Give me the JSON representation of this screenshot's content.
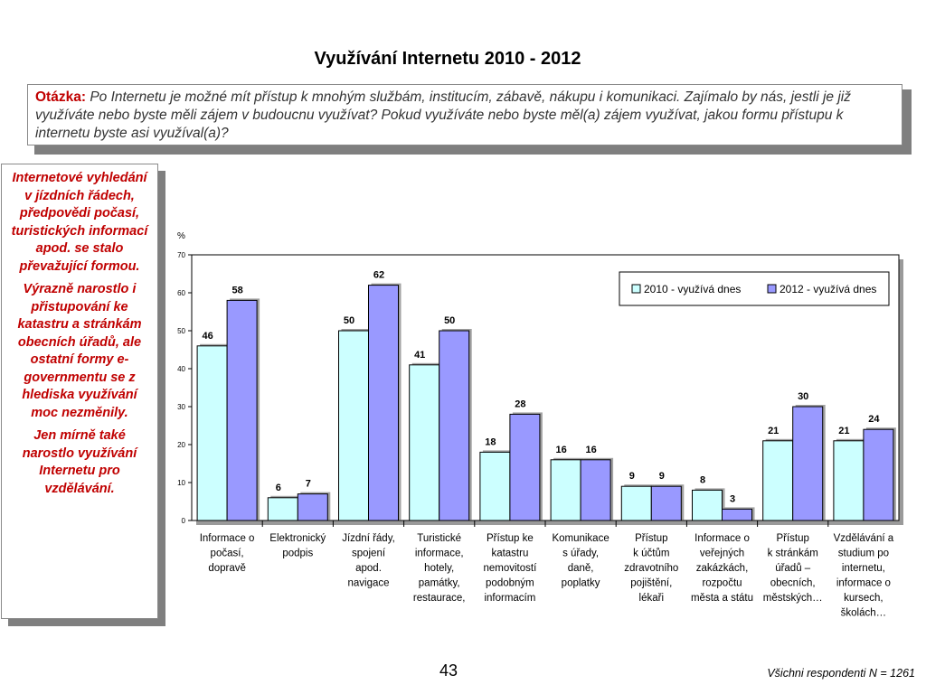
{
  "title": "Využívání Internetu 2010 - 2012",
  "question": {
    "label": "Otázka:",
    "text": "Po Internetu je možné mít přístup k mnohým službám, institucím, zábavě, nákupu i komunikaci. Zajímalo by nás, jestli je již využíváte nebo byste měli zájem v budoucnu využívat? Pokud využíváte nebo byste měl(a) zájem využívat, jakou formu přístupu k internetu byste asi využíval(a)?"
  },
  "note": {
    "paragraphs": [
      "Internetové vyhledání v jízdních řádech, předpovědi počasí, turistických informací apod. se stalo převažující formou.",
      "Výrazně narostlo i přistupování ke katastru a stránkám obecních úřadů, ale ostatní formy e-governmentu se z hlediska využívání moc nezměnily.",
      "Jen mírně také narostlo využívání Internetu pro vzdělávání."
    ]
  },
  "chart_data": {
    "type": "bar",
    "y_unit_label": "%",
    "ylim": [
      0,
      70
    ],
    "yticks": [
      0,
      10,
      20,
      30,
      40,
      50,
      60,
      70
    ],
    "grid": false,
    "legend_position": "top-right",
    "categories": [
      [
        "Informace o",
        "počasí,",
        "dopravě"
      ],
      [
        "Elektronický",
        "podpis"
      ],
      [
        "Jízdní řády,",
        "spojení",
        "apod.",
        "navigace"
      ],
      [
        "Turistické",
        "informace,",
        "hotely,",
        "památky,",
        "restaurace,"
      ],
      [
        "Přístup ke",
        "katastru",
        "nemovitostí",
        "podobným",
        "informacím"
      ],
      [
        "Komunikace",
        "s úřady,",
        "daně,",
        "poplatky"
      ],
      [
        "Přístup",
        "k účtům",
        "zdravotního",
        "pojištění,",
        "lékaři"
      ],
      [
        "Informace o",
        "veřejných",
        "zakázkách,",
        "rozpočtu",
        "města a státu"
      ],
      [
        "Přístup",
        "k stránkám",
        "úřadů –",
        "obecních,",
        "městských…"
      ],
      [
        "Vzdělávání a",
        "studium po",
        "internetu,",
        "informace o",
        "kursech,",
        "školách…"
      ]
    ],
    "series": [
      {
        "name": "2010 - využívá dnes",
        "color": "#ccffff",
        "values": [
          46,
          6,
          50,
          41,
          18,
          16,
          9,
          8,
          21,
          21
        ]
      },
      {
        "name": "2012 - využívá dnes",
        "color": "#9999ff",
        "values": [
          58,
          7,
          62,
          50,
          28,
          16,
          9,
          3,
          30,
          24
        ]
      }
    ]
  },
  "page_number": "43",
  "footnote": "Všichni respondenti N = 1261"
}
